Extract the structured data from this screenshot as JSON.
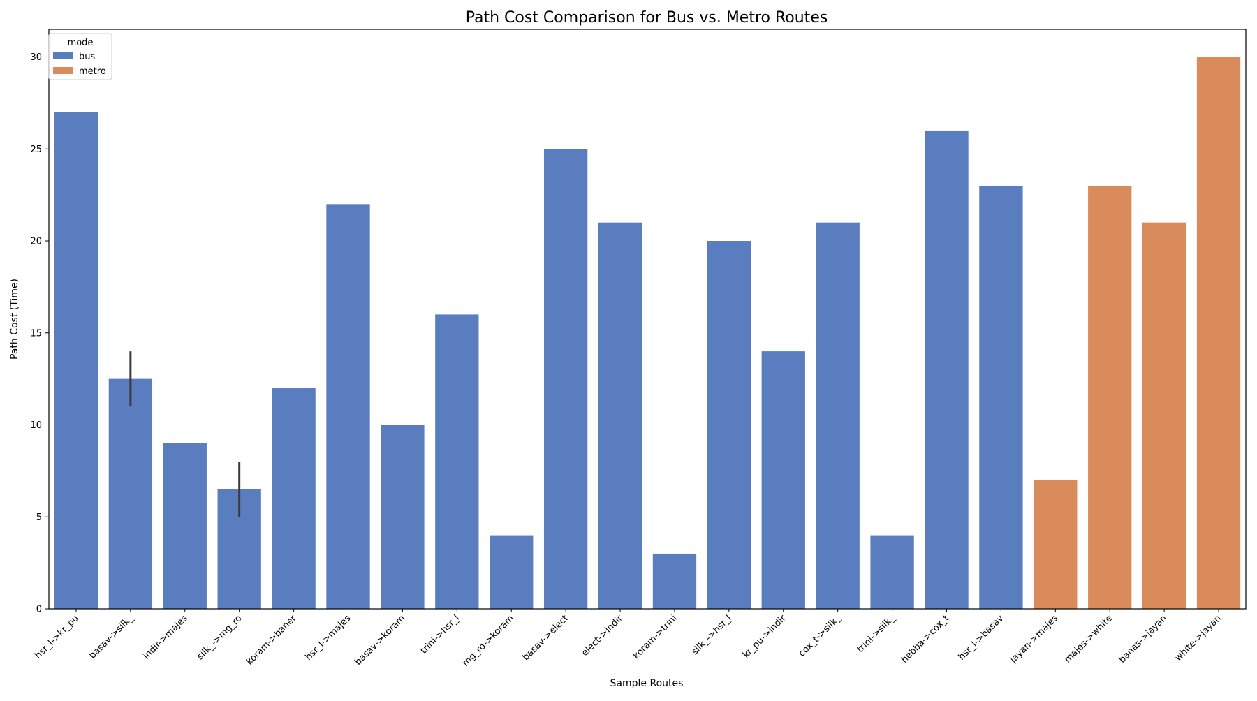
{
  "chart_data": {
    "type": "bar",
    "title": "Path Cost Comparison for Bus vs. Metro Routes",
    "xlabel": "Sample Routes",
    "ylabel": "Path Cost (Time)",
    "ylim": [
      0,
      31.5
    ],
    "yticks": [
      0,
      5,
      10,
      15,
      20,
      25,
      30
    ],
    "grid": false,
    "legend": {
      "title": "mode",
      "placement": "top-left",
      "entries": [
        {
          "label": "bus",
          "color": "#5a7dc0"
        },
        {
          "label": "metro",
          "color": "#da8b5c"
        }
      ]
    },
    "series_colors": {
      "bus": "#5a7dc0",
      "metro": "#da8b5c"
    },
    "error_bar_color": "#3a3a3a",
    "categories": [
      "hsr_l->kr_pu",
      "basav->silk_",
      "indir->majes",
      "silk_->mg_ro",
      "koram->baner",
      "hsr_l->majes",
      "basav->koram",
      "trini->hsr_l",
      "mg_ro->koram",
      "basav->elect",
      "elect->indir",
      "koram->trini",
      "silk_->hsr_l",
      "kr_pu->indir",
      "cox_t->silk_",
      "trini->silk_",
      "hebba->cox_t",
      "hsr_l->basav",
      "jayan->majes",
      "majes->white",
      "banas->jayan",
      "white->jayan"
    ],
    "bars": [
      {
        "category": "hsr_l->kr_pu",
        "mode": "bus",
        "value": 27
      },
      {
        "category": "basav->silk_",
        "mode": "bus",
        "value": 12.5,
        "err_low": 11,
        "err_high": 14
      },
      {
        "category": "indir->majes",
        "mode": "bus",
        "value": 9
      },
      {
        "category": "silk_->mg_ro",
        "mode": "bus",
        "value": 6.5,
        "err_low": 5,
        "err_high": 8
      },
      {
        "category": "koram->baner",
        "mode": "bus",
        "value": 12
      },
      {
        "category": "hsr_l->majes",
        "mode": "bus",
        "value": 22
      },
      {
        "category": "basav->koram",
        "mode": "bus",
        "value": 10
      },
      {
        "category": "trini->hsr_l",
        "mode": "bus",
        "value": 16
      },
      {
        "category": "mg_ro->koram",
        "mode": "bus",
        "value": 4
      },
      {
        "category": "basav->elect",
        "mode": "bus",
        "value": 25
      },
      {
        "category": "elect->indir",
        "mode": "bus",
        "value": 21
      },
      {
        "category": "koram->trini",
        "mode": "bus",
        "value": 3
      },
      {
        "category": "silk_->hsr_l",
        "mode": "bus",
        "value": 20
      },
      {
        "category": "kr_pu->indir",
        "mode": "bus",
        "value": 14
      },
      {
        "category": "cox_t->silk_",
        "mode": "bus",
        "value": 21
      },
      {
        "category": "trini->silk_",
        "mode": "bus",
        "value": 4
      },
      {
        "category": "hebba->cox_t",
        "mode": "bus",
        "value": 26
      },
      {
        "category": "hsr_l->basav",
        "mode": "bus",
        "value": 23
      },
      {
        "category": "jayan->majes",
        "mode": "metro",
        "value": 7
      },
      {
        "category": "majes->white",
        "mode": "metro",
        "value": 23
      },
      {
        "category": "banas->jayan",
        "mode": "metro",
        "value": 21
      },
      {
        "category": "white->jayan",
        "mode": "metro",
        "value": 30
      }
    ]
  }
}
